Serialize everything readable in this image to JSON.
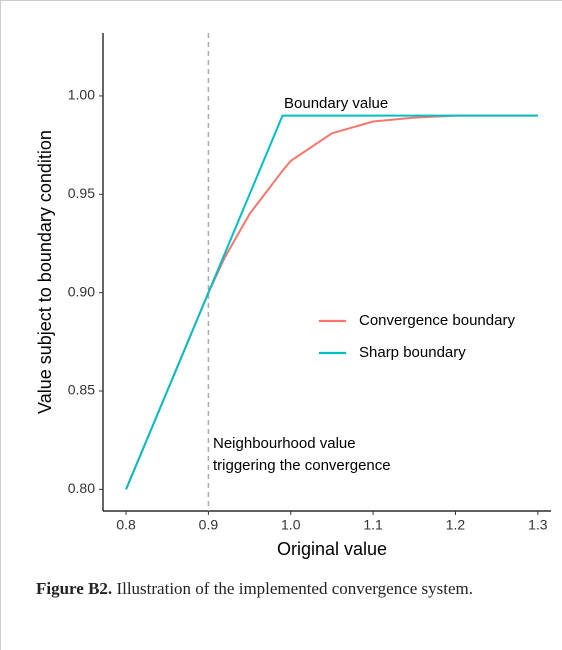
{
  "chart_data": {
    "type": "line",
    "xlabel": "Original value",
    "ylabel": "Value subject to boundary condition",
    "x": [
      0.8,
      0.85,
      0.9,
      0.92,
      0.95,
      0.99,
      1.0,
      1.05,
      1.1,
      1.15,
      1.2,
      1.25,
      1.3
    ],
    "series": [
      {
        "name": "Convergence boundary",
        "color": "#F8766D",
        "values": [
          0.8,
          0.85,
          0.9,
          0.918,
          0.94,
          0.962,
          0.967,
          0.981,
          0.987,
          0.989,
          0.99,
          0.99,
          0.99
        ]
      },
      {
        "name": "Sharp boundary",
        "color": "#00BFC4",
        "values": [
          0.8,
          0.85,
          0.9,
          0.92,
          0.95,
          0.99,
          0.99,
          0.99,
          0.99,
          0.99,
          0.99,
          0.99,
          0.99
        ]
      }
    ],
    "xlim": [
      0.772,
      1.316
    ],
    "xticks": [
      0.8,
      0.9,
      {
        "value": 1.0,
        "label": "1.0"
      },
      1.1,
      1.2,
      1.3
    ],
    "ylim": [
      0.789,
      1.032
    ],
    "yticks": [
      {
        "value": 0.8,
        "label": "0.80"
      },
      0.85,
      {
        "value": 0.9,
        "label": "0.90"
      },
      0.95,
      {
        "value": 1.0,
        "label": "1.00"
      }
    ],
    "vline": 0.9,
    "annotations": [
      "Boundary value",
      "Neighbourhood value",
      "triggering the convergence"
    ],
    "legend": "right",
    "grid": false
  },
  "caption": {
    "label": "Figure B2.",
    "text": "Illustration of the implemented convergence system."
  }
}
